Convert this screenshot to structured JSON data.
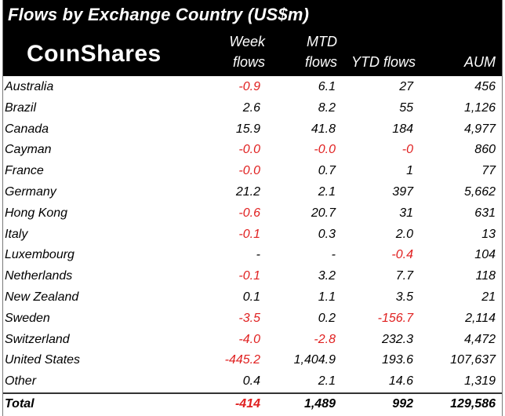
{
  "title": "Flows by Exchange Country (US$m)",
  "logo": {
    "part1": "Co",
    "part2": "nShares"
  },
  "columns": {
    "week_line1": "Week",
    "week_line2": "flows",
    "mtd_line1": "MTD",
    "mtd_line2": "flows",
    "ytd": "YTD flows",
    "aum": "AUM"
  },
  "colors": {
    "negative": "#e02020",
    "header_bg": "#000000"
  },
  "rows": [
    {
      "name": "Australia",
      "week": "-0.9",
      "mtd": "6.1",
      "ytd": "27",
      "aum": "456",
      "week_neg": true,
      "mtd_neg": false,
      "ytd_neg": false
    },
    {
      "name": "Brazil",
      "week": "2.6",
      "mtd": "8.2",
      "ytd": "55",
      "aum": "1,126",
      "week_neg": false,
      "mtd_neg": false,
      "ytd_neg": false
    },
    {
      "name": "Canada",
      "week": "15.9",
      "mtd": "41.8",
      "ytd": "184",
      "aum": "4,977",
      "week_neg": false,
      "mtd_neg": false,
      "ytd_neg": false
    },
    {
      "name": "Cayman",
      "week": "-0.0",
      "mtd": "-0.0",
      "ytd": "-0",
      "aum": "860",
      "week_neg": true,
      "mtd_neg": true,
      "ytd_neg": true
    },
    {
      "name": "France",
      "week": "-0.0",
      "mtd": "0.7",
      "ytd": "1",
      "aum": "77",
      "week_neg": true,
      "mtd_neg": false,
      "ytd_neg": false
    },
    {
      "name": "Germany",
      "week": "21.2",
      "mtd": "2.1",
      "ytd": "397",
      "aum": "5,662",
      "week_neg": false,
      "mtd_neg": false,
      "ytd_neg": false
    },
    {
      "name": "Hong Kong",
      "week": "-0.6",
      "mtd": "20.7",
      "ytd": "31",
      "aum": "631",
      "week_neg": true,
      "mtd_neg": false,
      "ytd_neg": false
    },
    {
      "name": "Italy",
      "week": "-0.1",
      "mtd": "0.3",
      "ytd": "2.0",
      "aum": "13",
      "week_neg": true,
      "mtd_neg": false,
      "ytd_neg": false
    },
    {
      "name": "Luxembourg",
      "week": "-",
      "mtd": "-",
      "ytd": "-0.4",
      "aum": "104",
      "week_neg": false,
      "mtd_neg": false,
      "ytd_neg": true
    },
    {
      "name": "Netherlands",
      "week": "-0.1",
      "mtd": "3.2",
      "ytd": "7.7",
      "aum": "118",
      "week_neg": true,
      "mtd_neg": false,
      "ytd_neg": false
    },
    {
      "name": "New Zealand",
      "week": "0.1",
      "mtd": "1.1",
      "ytd": "3.5",
      "aum": "21",
      "week_neg": false,
      "mtd_neg": false,
      "ytd_neg": false
    },
    {
      "name": "Sweden",
      "week": "-3.5",
      "mtd": "0.2",
      "ytd": "-156.7",
      "aum": "2,114",
      "week_neg": true,
      "mtd_neg": false,
      "ytd_neg": true
    },
    {
      "name": "Switzerland",
      "week": "-4.0",
      "mtd": "-2.8",
      "ytd": "232.3",
      "aum": "4,472",
      "week_neg": true,
      "mtd_neg": true,
      "ytd_neg": false
    },
    {
      "name": "United States",
      "week": "-445.2",
      "mtd": "1,404.9",
      "ytd": "193.6",
      "aum": "107,637",
      "week_neg": true,
      "mtd_neg": false,
      "ytd_neg": false
    },
    {
      "name": "Other",
      "week": "0.4",
      "mtd": "2.1",
      "ytd": "14.6",
      "aum": "1,319",
      "week_neg": false,
      "mtd_neg": false,
      "ytd_neg": false
    }
  ],
  "total": {
    "name": "Total",
    "week": "-414",
    "mtd": "1,489",
    "ytd": "992",
    "aum": "129,586",
    "week_neg": true,
    "mtd_neg": false,
    "ytd_neg": false
  }
}
